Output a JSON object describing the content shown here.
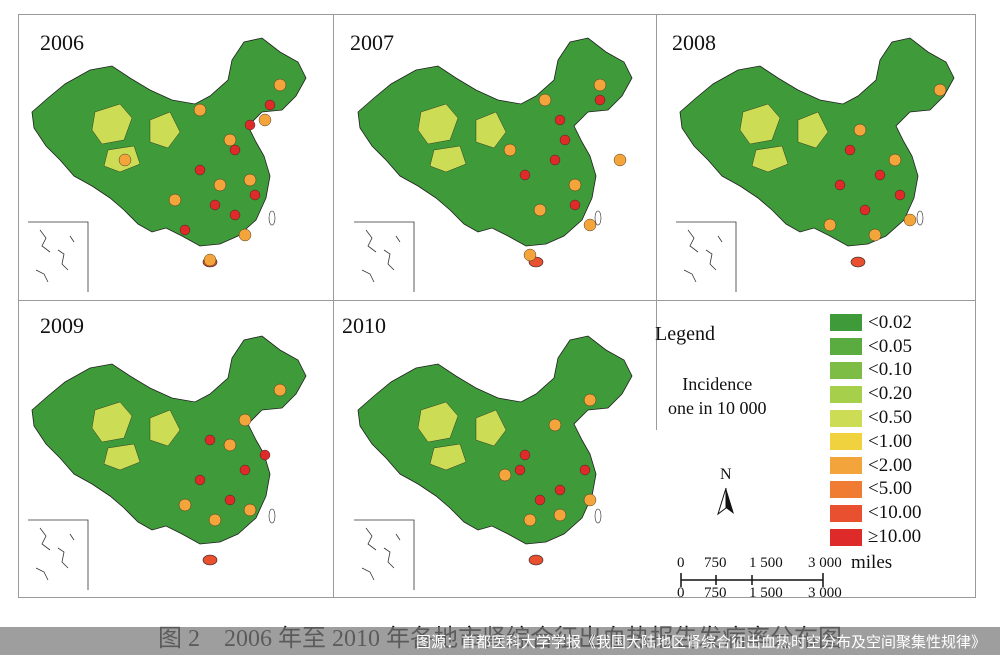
{
  "panels": [
    {
      "year": "2006",
      "hot": [
        [
          200,
          170
        ],
        [
          235,
          150
        ],
        [
          250,
          125
        ],
        [
          270,
          105
        ],
        [
          215,
          205
        ],
        [
          235,
          215
        ],
        [
          185,
          230
        ],
        [
          255,
          195
        ]
      ],
      "mid": [
        [
          125,
          160
        ],
        [
          230,
          140
        ],
        [
          280,
          85
        ],
        [
          265,
          120
        ],
        [
          200,
          110
        ],
        [
          250,
          180
        ],
        [
          175,
          200
        ],
        [
          220,
          185
        ],
        [
          245,
          235
        ],
        [
          210,
          260
        ]
      ]
    },
    {
      "year": "2007",
      "hot": [
        [
          560,
          120
        ],
        [
          565,
          140
        ],
        [
          525,
          175
        ],
        [
          575,
          205
        ],
        [
          555,
          160
        ],
        [
          600,
          100
        ]
      ],
      "mid": [
        [
          545,
          100
        ],
        [
          600,
          85
        ],
        [
          510,
          150
        ],
        [
          575,
          185
        ],
        [
          540,
          210
        ],
        [
          590,
          225
        ],
        [
          530,
          255
        ],
        [
          620,
          160
        ]
      ]
    },
    {
      "year": "2008",
      "hot": [
        [
          850,
          150
        ],
        [
          880,
          175
        ],
        [
          865,
          210
        ],
        [
          900,
          195
        ],
        [
          840,
          185
        ]
      ],
      "mid": [
        [
          860,
          130
        ],
        [
          940,
          90
        ],
        [
          895,
          160
        ],
        [
          830,
          225
        ],
        [
          875,
          235
        ],
        [
          910,
          220
        ]
      ]
    },
    {
      "year": "2009",
      "hot": [
        [
          210,
          440
        ],
        [
          245,
          470
        ],
        [
          200,
          480
        ],
        [
          230,
          500
        ],
        [
          265,
          455
        ]
      ],
      "mid": [
        [
          280,
          390
        ],
        [
          245,
          420
        ],
        [
          230,
          445
        ],
        [
          185,
          505
        ],
        [
          215,
          520
        ],
        [
          250,
          510
        ]
      ]
    },
    {
      "year": "2010",
      "hot": [
        [
          525,
          455
        ],
        [
          520,
          470
        ],
        [
          560,
          490
        ],
        [
          540,
          500
        ],
        [
          585,
          470
        ]
      ],
      "mid": [
        [
          555,
          425
        ],
        [
          590,
          400
        ],
        [
          505,
          475
        ],
        [
          560,
          515
        ],
        [
          590,
          500
        ],
        [
          530,
          520
        ]
      ]
    }
  ],
  "legend": {
    "title": "Legend",
    "subtitle_line1": "Incidence",
    "subtitle_line2": "one in 10 000",
    "items": [
      {
        "label": "<0.02",
        "color": "#3f9a3a"
      },
      {
        "label": "<0.05",
        "color": "#5aab40"
      },
      {
        "label": "<0.10",
        "color": "#7dbd45"
      },
      {
        "label": "<0.20",
        "color": "#a6cf4c"
      },
      {
        "label": "<0.50",
        "color": "#cddc55"
      },
      {
        "label": "<1.00",
        "color": "#f0d23e"
      },
      {
        "label": "<2.00",
        "color": "#f3a43a"
      },
      {
        "label": "<5.00",
        "color": "#ef7c32"
      },
      {
        "label": "<10.00",
        "color": "#e8502f"
      },
      {
        "label": "≥10.00",
        "color": "#df2a2a"
      }
    ]
  },
  "north_label": "N",
  "scale": {
    "top_ticks": [
      "0",
      "750",
      "1 500",
      "3 000"
    ],
    "unit": "miles",
    "bottom_ticks": [
      "0",
      "750",
      "1 500",
      "3 000"
    ]
  },
  "caption": "图 2　2006 年至 2010 年各地市肾综合征出血热报告发病率分布图",
  "banner": "图源：首都医科大学学报《我国大陆地区肾综合征出血热时空分布及空间聚集性规律》",
  "colors": {
    "border": "#202020",
    "base": "#3f9a3a",
    "sea": "#ffffff"
  }
}
